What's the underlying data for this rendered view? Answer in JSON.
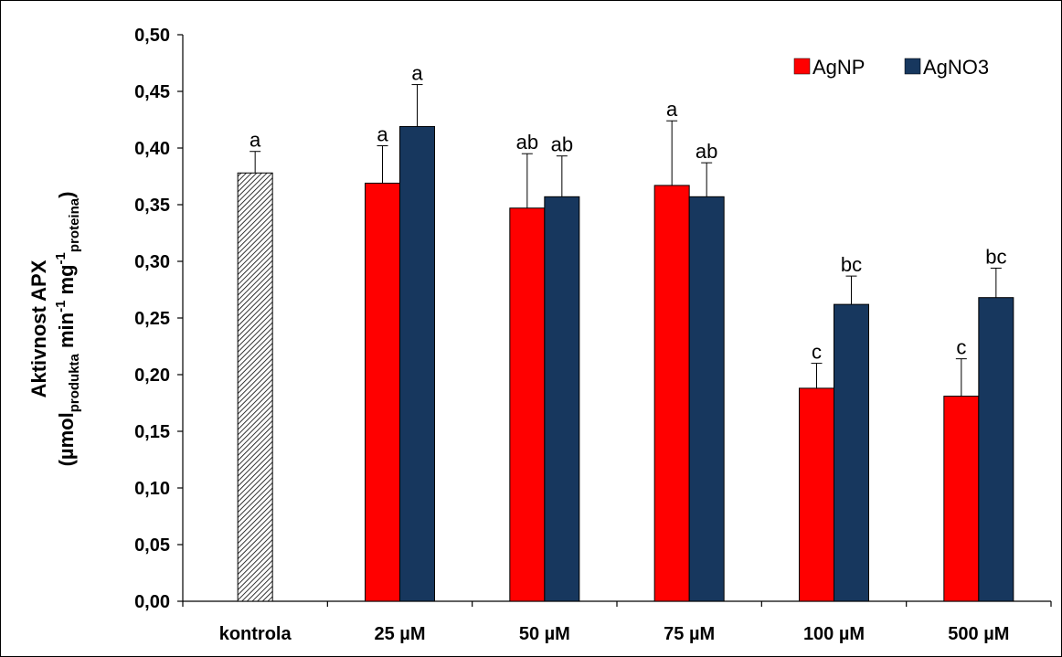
{
  "chart_data": {
    "type": "bar",
    "categories": [
      "kontrola",
      "25 µM",
      "50 µM",
      "75 µM",
      "100 µM",
      "500 µM"
    ],
    "ylabel": {
      "line1": "Aktivnost APX",
      "line2_pre": "(µmol",
      "line2_sub1": "produkta",
      "line2_mid1": " min",
      "line2_sup1": "-1",
      "line2_mid2": " mg",
      "line2_sup2": "-1",
      "line2_sub2": "proteina",
      "line2_post": ")"
    },
    "ylim": [
      0,
      0.5
    ],
    "yticks": [
      "0,00",
      "0,05",
      "0,10",
      "0,15",
      "0,20",
      "0,25",
      "0,30",
      "0,35",
      "0,40",
      "0,45",
      "0,50"
    ],
    "grid": false,
    "legend_position": "top-right",
    "control": {
      "value": 0.378,
      "error": 0.019,
      "label": "a",
      "color": "#ffffff",
      "pattern": "diagonal-hatch"
    },
    "series": [
      {
        "name": "AgNP",
        "color": "#ff0000",
        "values": [
          null,
          0.369,
          0.347,
          0.367,
          0.188,
          0.181
        ],
        "errors": [
          null,
          0.033,
          0.048,
          0.057,
          0.022,
          0.033
        ],
        "labels": [
          null,
          "a",
          "ab",
          "a",
          "c",
          "c"
        ]
      },
      {
        "name": "AgNO3",
        "color": "#17375e",
        "values": [
          null,
          0.419,
          0.357,
          0.357,
          0.262,
          0.268
        ],
        "errors": [
          null,
          0.037,
          0.036,
          0.03,
          0.025,
          0.026
        ],
        "labels": [
          null,
          "a",
          "ab",
          "ab",
          "bc",
          "bc"
        ]
      }
    ]
  }
}
